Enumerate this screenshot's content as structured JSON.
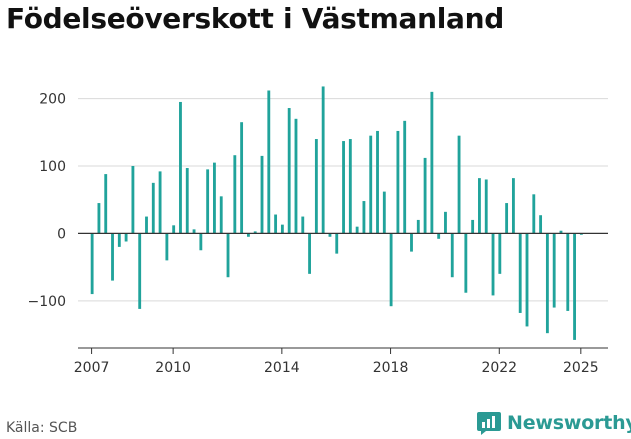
{
  "title": "Födelseöverskott i Västmanland",
  "source": "Källa: SCB",
  "brand": {
    "name": "Newsworthy",
    "color": "#2b9a94",
    "icon": "newsworthy-logo-icon"
  },
  "chart_data": {
    "type": "bar",
    "title": "Födelseöverskott i Västmanland",
    "xlabel": "",
    "ylabel": "",
    "ylim": [
      -170,
      235
    ],
    "yticks": [
      -100,
      0,
      100,
      200
    ],
    "ytick_labels": [
      "−100",
      "0",
      "100",
      "200"
    ],
    "xlim": [
      2006.5,
      2026.0
    ],
    "xticks": [
      2007,
      2010,
      2014,
      2018,
      2022,
      2025
    ],
    "grid": true,
    "legend": "none",
    "bar_color": "#20a39b",
    "frequency": "monthly",
    "series": [
      {
        "values": [
          -90,
          45,
          88,
          -70,
          -20,
          -12,
          100,
          -112,
          25,
          75,
          92,
          -40,
          12,
          195,
          97,
          6,
          -25,
          95,
          105,
          55,
          -65,
          116,
          165,
          -5,
          3,
          115,
          212,
          28,
          13,
          186,
          170,
          25,
          -60,
          140,
          218,
          -5,
          -30,
          137,
          140,
          10,
          48,
          145,
          152,
          62,
          -108,
          152,
          167,
          -27,
          20,
          112,
          210,
          -8,
          32,
          -65,
          145,
          -88,
          20,
          82,
          80,
          -92,
          -60,
          45,
          82,
          -118,
          -138,
          58,
          27,
          -148,
          -110,
          4,
          -115,
          -158,
          -2
        ]
      }
    ]
  }
}
